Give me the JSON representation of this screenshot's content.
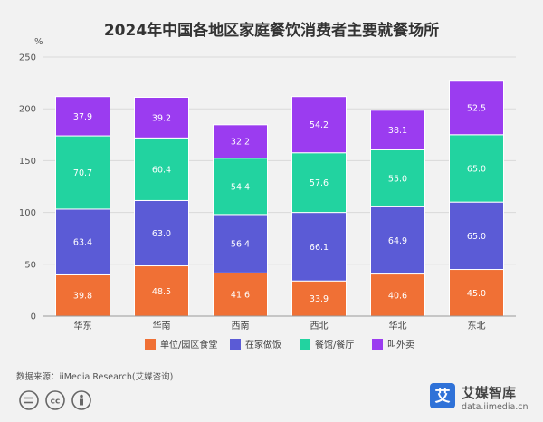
{
  "chart_data": {
    "type": "bar",
    "stacked": true,
    "title": "2024年中国各地区家庭餐饮消费者主要就餐场所",
    "ylabel": "%",
    "ylim": [
      0,
      250
    ],
    "yticks": [
      0,
      50,
      100,
      150,
      200,
      250
    ],
    "grid": true,
    "legend_position": "bottom",
    "categories": [
      "华东",
      "华南",
      "西南",
      "西北",
      "华北",
      "东北"
    ],
    "series": [
      {
        "name": "单位/园区食堂",
        "color": "#f07035",
        "values": [
          39.8,
          48.5,
          41.6,
          33.9,
          40.6,
          45.0
        ]
      },
      {
        "name": "在家做饭",
        "color": "#5b5bd6",
        "values": [
          63.4,
          63.0,
          56.4,
          66.1,
          64.9,
          65.0
        ]
      },
      {
        "name": "餐馆/餐厅",
        "color": "#22d3a0",
        "values": [
          70.7,
          60.4,
          54.4,
          57.6,
          55.0,
          65.0
        ]
      },
      {
        "name": "叫外卖",
        "color": "#9b3cf0",
        "values": [
          37.9,
          39.2,
          32.2,
          54.2,
          38.1,
          52.5
        ]
      }
    ]
  },
  "footer": {
    "source": "数据来源：iiMedia Research(艾媒咨询)",
    "brand_name": "艾媒智库",
    "brand_url": "data.iimedia.cn",
    "brand_logo_text": "艾",
    "license_icons": [
      "cc-equal-icon",
      "cc-icon",
      "cc-person-icon"
    ]
  }
}
